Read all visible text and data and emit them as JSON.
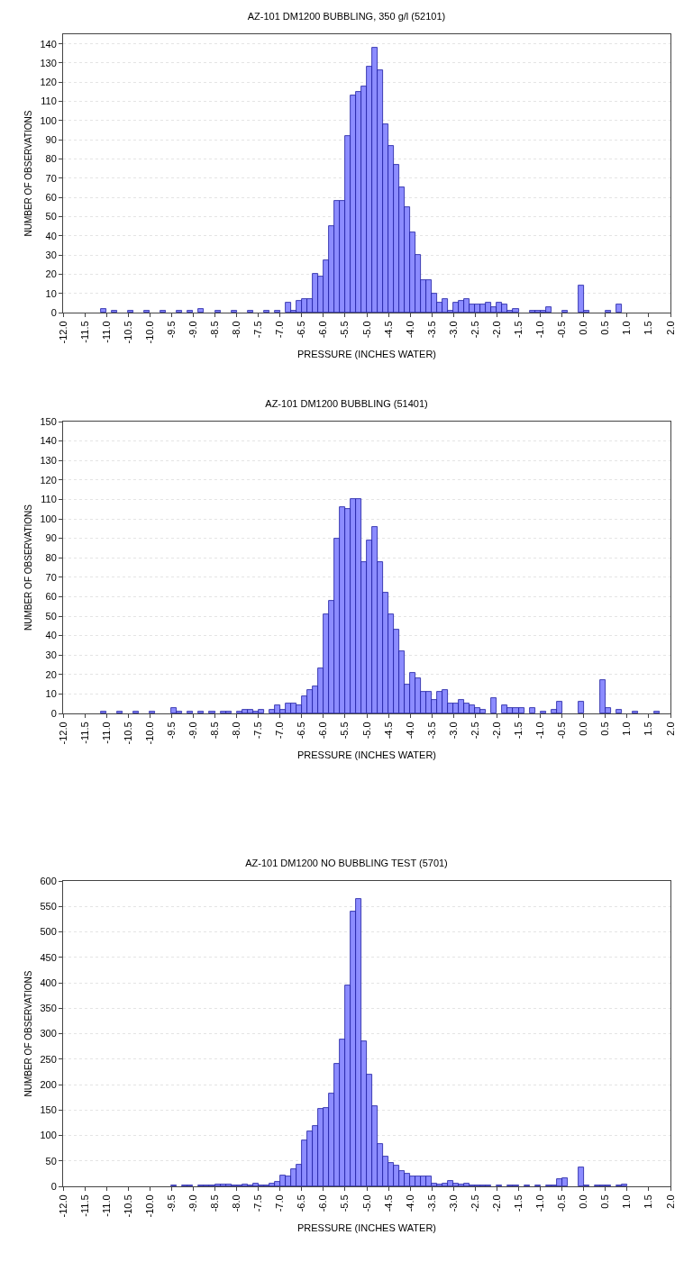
{
  "chart_data": [
    {
      "type": "histogram",
      "title": "AZ-101 DM1200 BUBBLING, 350 g/l (52101)",
      "xlabel": "PRESSURE (INCHES WATER)",
      "ylabel": "NUMBER OF OBSERVATIONS",
      "color": "#8c8cff",
      "grid": "y",
      "bins": [
        -12,
        -11.875,
        -11.75,
        -11.625,
        -11.5,
        -11.375,
        -11.25,
        -11.125,
        -11,
        -10.875,
        -10.75,
        -10.625,
        -10.5,
        -10.375,
        -10.25,
        -10.125,
        -10,
        -9.875,
        -9.75,
        -9.625,
        -9.5,
        -9.375,
        -9.25,
        -9.125,
        -9,
        -8.875,
        -8.75,
        -8.625,
        -8.5,
        -8.375,
        -8.25,
        -8.125,
        -8,
        -7.875,
        -7.75,
        -7.625,
        -7.5,
        -7.375,
        -7.25,
        -7.125,
        -7,
        -6.875,
        -6.75,
        -6.625,
        -6.5,
        -6.375,
        -6.25,
        -6.125,
        -6,
        -5.875,
        -5.75,
        -5.625,
        -5.5,
        -5.375,
        -5.25,
        -5.125,
        -5,
        -4.875,
        -4.75,
        -4.625,
        -4.5,
        -4.375,
        -4.25,
        -4.125,
        -4,
        -3.875,
        -3.75,
        -3.625,
        -3.5,
        -3.375,
        -3.25,
        -3.125,
        -3,
        -2.875,
        -2.75,
        -2.625,
        -2.5,
        -2.375,
        -2.25,
        -2.125,
        -2,
        -1.875,
        -1.75,
        -1.625,
        -1.5,
        -1.375,
        -1.25,
        -1.125,
        -1,
        -0.875,
        -0.75,
        -0.625,
        -0.5,
        -0.375,
        -0.25,
        -0.125,
        0,
        0.125,
        0.25,
        0.375,
        0.5,
        0.625,
        0.75,
        0.875,
        1,
        1.125,
        1.25,
        1.375,
        1.5,
        1.625,
        1.75,
        1.875,
        2
      ],
      "values": [
        0,
        0,
        0,
        0,
        0,
        0,
        0,
        2,
        0,
        1,
        0,
        0,
        1,
        0,
        0,
        1,
        0,
        0,
        1,
        0,
        0,
        1,
        0,
        1,
        0,
        2,
        0,
        0,
        1,
        0,
        0,
        1,
        0,
        0,
        1,
        0,
        0,
        1,
        0,
        1,
        0,
        5,
        1,
        6,
        7,
        7,
        20,
        19,
        27,
        45,
        58,
        58,
        92,
        113,
        115,
        118,
        128,
        138,
        126,
        98,
        87,
        77,
        65,
        55,
        42,
        30,
        17,
        17,
        10,
        5,
        7,
        1,
        5,
        6,
        7,
        4,
        4,
        4,
        5,
        3,
        5,
        4,
        1,
        2,
        0,
        0,
        1,
        1,
        1,
        3,
        0,
        0,
        1,
        0,
        0,
        14,
        1,
        0,
        0,
        0,
        1,
        0,
        4,
        0,
        0,
        0,
        0,
        0,
        0,
        0,
        0,
        0
      ],
      "xlim": [
        -12,
        2
      ],
      "xticks": [
        {
          "value": -12,
          "label": "-12.0"
        },
        {
          "value": -11.5,
          "label": "-11.5"
        },
        {
          "value": -11,
          "label": "-11.0"
        },
        {
          "value": -10.5,
          "label": "-10.5"
        },
        {
          "value": -10,
          "label": "-10.0"
        },
        {
          "value": -9.5,
          "label": "-9.5"
        },
        {
          "value": -9,
          "label": "-9.0"
        },
        {
          "value": -8.5,
          "label": "-8.5"
        },
        {
          "value": -8,
          "label": "-8.0"
        },
        {
          "value": -7.5,
          "label": "-7.5"
        },
        {
          "value": -7,
          "label": "-7.0"
        },
        {
          "value": -6.5,
          "label": "-6.5"
        },
        {
          "value": -6,
          "label": "-6.0"
        },
        {
          "value": -5.5,
          "label": "-5.5"
        },
        {
          "value": -5,
          "label": "-5.0"
        },
        {
          "value": -4.5,
          "label": "-4.5"
        },
        {
          "value": -4,
          "label": "-4.0"
        },
        {
          "value": -3.5,
          "label": "-3.5"
        },
        {
          "value": -3,
          "label": "-3.0"
        },
        {
          "value": -2.5,
          "label": "-2.5"
        },
        {
          "value": -2,
          "label": "-2.0"
        },
        {
          "value": -1.5,
          "label": "-1.5"
        },
        {
          "value": -1,
          "label": "-1.0"
        },
        {
          "value": -0.5,
          "label": "-0.5"
        },
        {
          "value": 0,
          "label": "0.0"
        },
        {
          "value": 0.5,
          "label": "0.5"
        },
        {
          "value": 1,
          "label": "1.0"
        },
        {
          "value": 1.5,
          "label": "1.5"
        },
        {
          "value": 2,
          "label": "2.0"
        }
      ],
      "ylim": [
        0,
        145
      ],
      "yticks": [
        0,
        10,
        20,
        30,
        40,
        50,
        60,
        70,
        80,
        90,
        100,
        110,
        120,
        130,
        140
      ]
    },
    {
      "type": "histogram",
      "title": "AZ-101 DM1200 BUBBLING (51401)",
      "xlabel": "PRESSURE (INCHES WATER)",
      "ylabel": "NUMBER OF OBSERVATIONS",
      "color": "#8c8cff",
      "grid": "y",
      "bins": [
        -12,
        -11.875,
        -11.75,
        -11.625,
        -11.5,
        -11.375,
        -11.25,
        -11.125,
        -11,
        -10.875,
        -10.75,
        -10.625,
        -10.5,
        -10.375,
        -10.25,
        -10.125,
        -10,
        -9.875,
        -9.75,
        -9.625,
        -9.5,
        -9.375,
        -9.25,
        -9.125,
        -9,
        -8.875,
        -8.75,
        -8.625,
        -8.5,
        -8.375,
        -8.25,
        -8.125,
        -8,
        -7.875,
        -7.75,
        -7.625,
        -7.5,
        -7.375,
        -7.25,
        -7.125,
        -7,
        -6.875,
        -6.75,
        -6.625,
        -6.5,
        -6.375,
        -6.25,
        -6.125,
        -6,
        -5.875,
        -5.75,
        -5.625,
        -5.5,
        -5.375,
        -5.25,
        -5.125,
        -5,
        -4.875,
        -4.75,
        -4.625,
        -4.5,
        -4.375,
        -4.25,
        -4.125,
        -4,
        -3.875,
        -3.75,
        -3.625,
        -3.5,
        -3.375,
        -3.25,
        -3.125,
        -3,
        -2.875,
        -2.75,
        -2.625,
        -2.5,
        -2.375,
        -2.25,
        -2.125,
        -2,
        -1.875,
        -1.75,
        -1.625,
        -1.5,
        -1.375,
        -1.25,
        -1.125,
        -1,
        -0.875,
        -0.75,
        -0.625,
        -0.5,
        -0.375,
        -0.25,
        -0.125,
        0,
        0.125,
        0.25,
        0.375,
        0.5,
        0.625,
        0.75,
        0.875,
        1,
        1.125,
        1.25,
        1.375,
        1.5,
        1.625,
        1.75,
        1.875,
        2
      ],
      "values": [
        0,
        0,
        0,
        0,
        0,
        0,
        0,
        1,
        0,
        0,
        1,
        0,
        0,
        1,
        0,
        0,
        1,
        0,
        0,
        0,
        3,
        1,
        0,
        1,
        0,
        1,
        0,
        1,
        0,
        1,
        1,
        0,
        1,
        2,
        2,
        1,
        2,
        0,
        2,
        4,
        2,
        5,
        5,
        4,
        9,
        12,
        14,
        23,
        51,
        58,
        90,
        106,
        105,
        110,
        110,
        78,
        89,
        96,
        78,
        62,
        51,
        43,
        32,
        15,
        21,
        18,
        11,
        11,
        7,
        11,
        12,
        5,
        5,
        7,
        5,
        4,
        3,
        2,
        0,
        8,
        0,
        4,
        3,
        3,
        3,
        0,
        3,
        0,
        1,
        0,
        2,
        6,
        0,
        0,
        0,
        6,
        0,
        0,
        0,
        17,
        3,
        0,
        2,
        0,
        0,
        1,
        0,
        0,
        0,
        1,
        0,
        0
      ],
      "xlim": [
        -12,
        2
      ],
      "xticks": [
        {
          "value": -12,
          "label": "-12.0"
        },
        {
          "value": -11.5,
          "label": "-11.5"
        },
        {
          "value": -11,
          "label": "-11.0"
        },
        {
          "value": -10.5,
          "label": "-10.5"
        },
        {
          "value": -10,
          "label": "-10.0"
        },
        {
          "value": -9.5,
          "label": "-9.5"
        },
        {
          "value": -9,
          "label": "-9.0"
        },
        {
          "value": -8.5,
          "label": "-8.5"
        },
        {
          "value": -8,
          "label": "-8.0"
        },
        {
          "value": -7.5,
          "label": "-7.5"
        },
        {
          "value": -7,
          "label": "-7.0"
        },
        {
          "value": -6.5,
          "label": "-6.5"
        },
        {
          "value": -6,
          "label": "-6.0"
        },
        {
          "value": -5.5,
          "label": "-5.5"
        },
        {
          "value": -5,
          "label": "-5.0"
        },
        {
          "value": -4.5,
          "label": "-4.5"
        },
        {
          "value": -4,
          "label": "-4.0"
        },
        {
          "value": -3.5,
          "label": "-3.5"
        },
        {
          "value": -3,
          "label": "-3.0"
        },
        {
          "value": -2.5,
          "label": "-2.5"
        },
        {
          "value": -2,
          "label": "-2.0"
        },
        {
          "value": -1.5,
          "label": "-1.5"
        },
        {
          "value": -1,
          "label": "-1.0"
        },
        {
          "value": -0.5,
          "label": "-0.5"
        },
        {
          "value": 0,
          "label": "0.0"
        },
        {
          "value": 0.5,
          "label": "0.5"
        },
        {
          "value": 1,
          "label": "1.0"
        },
        {
          "value": 1.5,
          "label": "1.5"
        },
        {
          "value": 2,
          "label": "2.0"
        }
      ],
      "ylim": [
        0,
        150
      ],
      "yticks": [
        0,
        10,
        20,
        30,
        40,
        50,
        60,
        70,
        80,
        90,
        100,
        110,
        120,
        130,
        140,
        150
      ]
    },
    {
      "type": "histogram",
      "title": "AZ-101 DM1200 NO BUBBLING TEST (5701)",
      "xlabel": "PRESSURE (INCHES WATER)",
      "ylabel": "NUMBER OF OBSERVATIONS",
      "color": "#8c8cff",
      "grid": "y",
      "bins": [
        -12,
        -11.875,
        -11.75,
        -11.625,
        -11.5,
        -11.375,
        -11.25,
        -11.125,
        -11,
        -10.875,
        -10.75,
        -10.625,
        -10.5,
        -10.375,
        -10.25,
        -10.125,
        -10,
        -9.875,
        -9.75,
        -9.625,
        -9.5,
        -9.375,
        -9.25,
        -9.125,
        -9,
        -8.875,
        -8.75,
        -8.625,
        -8.5,
        -8.375,
        -8.25,
        -8.125,
        -8,
        -7.875,
        -7.75,
        -7.625,
        -7.5,
        -7.375,
        -7.25,
        -7.125,
        -7,
        -6.875,
        -6.75,
        -6.625,
        -6.5,
        -6.375,
        -6.25,
        -6.125,
        -6,
        -5.875,
        -5.75,
        -5.625,
        -5.5,
        -5.375,
        -5.25,
        -5.125,
        -5,
        -4.875,
        -4.75,
        -4.625,
        -4.5,
        -4.375,
        -4.25,
        -4.125,
        -4,
        -3.875,
        -3.75,
        -3.625,
        -3.5,
        -3.375,
        -3.25,
        -3.125,
        -3,
        -2.875,
        -2.75,
        -2.625,
        -2.5,
        -2.375,
        -2.25,
        -2.125,
        -2,
        -1.875,
        -1.75,
        -1.625,
        -1.5,
        -1.375,
        -1.25,
        -1.125,
        -1,
        -0.875,
        -0.75,
        -0.625,
        -0.5,
        -0.375,
        -0.25,
        -0.125,
        0,
        0.125,
        0.25,
        0.375,
        0.5,
        0.625,
        0.75,
        0.875,
        1,
        1.125,
        1.25,
        1.375,
        1.5,
        1.625,
        1.75,
        1.875,
        2
      ],
      "values": [
        0,
        0,
        0,
        0,
        0,
        0,
        0,
        0,
        0,
        0,
        0,
        0,
        0,
        0,
        0,
        0,
        0,
        0,
        0,
        0,
        1,
        0,
        1,
        1,
        0,
        1,
        1,
        1,
        3,
        4,
        3,
        1,
        2,
        3,
        1,
        5,
        2,
        2,
        6,
        9,
        22,
        20,
        33,
        42,
        90,
        108,
        118,
        153,
        154,
        183,
        240,
        288,
        394,
        540,
        564,
        285,
        219,
        158,
        83,
        58,
        46,
        40,
        30,
        24,
        20,
        19,
        20,
        20,
        6,
        3,
        6,
        10,
        6,
        3,
        6,
        1,
        2,
        1,
        1,
        0,
        1,
        0,
        1,
        1,
        0,
        1,
        0,
        1,
        0,
        1,
        1,
        14,
        16,
        0,
        0,
        37,
        1,
        0,
        1,
        1,
        1,
        0,
        1,
        3,
        0,
        0,
        0,
        0,
        0,
        0,
        0,
        0
      ],
      "xlim": [
        -12,
        2
      ],
      "xticks": [
        {
          "value": -12,
          "label": "-12.0"
        },
        {
          "value": -11.5,
          "label": "-11.5"
        },
        {
          "value": -11,
          "label": "-11.0"
        },
        {
          "value": -10.5,
          "label": "-10.5"
        },
        {
          "value": -10,
          "label": "-10.0"
        },
        {
          "value": -9.5,
          "label": "-9.5"
        },
        {
          "value": -9,
          "label": "-9.0"
        },
        {
          "value": -8.5,
          "label": "-8.5"
        },
        {
          "value": -8,
          "label": "-8.0"
        },
        {
          "value": -7.5,
          "label": "-7.5"
        },
        {
          "value": -7,
          "label": "-7.0"
        },
        {
          "value": -6.5,
          "label": "-6.5"
        },
        {
          "value": -6,
          "label": "-6.0"
        },
        {
          "value": -5.5,
          "label": "-5.5"
        },
        {
          "value": -5,
          "label": "-5.0"
        },
        {
          "value": -4.5,
          "label": "-4.5"
        },
        {
          "value": -4,
          "label": "-4.0"
        },
        {
          "value": -3.5,
          "label": "-3.5"
        },
        {
          "value": -3,
          "label": "-3.0"
        },
        {
          "value": -2.5,
          "label": "-2.5"
        },
        {
          "value": -2,
          "label": "-2.0"
        },
        {
          "value": -1.5,
          "label": "-1.5"
        },
        {
          "value": -1,
          "label": "-1.0"
        },
        {
          "value": -0.5,
          "label": "-0.5"
        },
        {
          "value": 0,
          "label": "0.0"
        },
        {
          "value": 0.5,
          "label": "0.5"
        },
        {
          "value": 1,
          "label": "1.0"
        },
        {
          "value": 1.5,
          "label": "1.5"
        },
        {
          "value": 2,
          "label": "2.0"
        }
      ],
      "ylim": [
        0,
        600
      ],
      "yticks": [
        0,
        50,
        100,
        150,
        200,
        250,
        300,
        350,
        400,
        450,
        500,
        550,
        600
      ]
    }
  ]
}
